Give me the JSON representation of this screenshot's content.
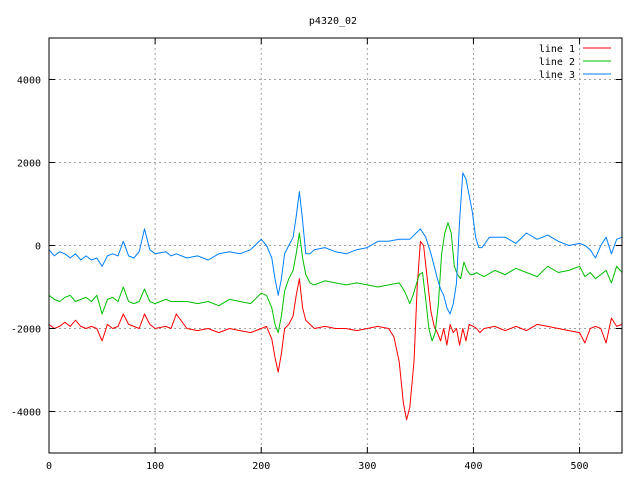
{
  "chart_data": {
    "type": "line",
    "title": "p4320_02",
    "xlabel": "",
    "ylabel": "",
    "xlim": [
      0,
      540
    ],
    "ylim": [
      -5000,
      5000
    ],
    "xticks": [
      0,
      100,
      200,
      300,
      400,
      500
    ],
    "yticks": [
      -4000,
      -2000,
      0,
      2000,
      4000
    ],
    "grid": true,
    "legend_position": "top-right",
    "series": [
      {
        "name": "line 1",
        "color": "#ff0000",
        "x": [
          0,
          5,
          10,
          15,
          20,
          25,
          30,
          35,
          40,
          45,
          50,
          55,
          60,
          65,
          70,
          75,
          80,
          85,
          90,
          95,
          100,
          110,
          115,
          120,
          130,
          140,
          150,
          160,
          170,
          180,
          190,
          200,
          205,
          210,
          213,
          216,
          219,
          222,
          226,
          230,
          233,
          236,
          239,
          242,
          246,
          250,
          260,
          270,
          280,
          290,
          300,
          310,
          320,
          325,
          330,
          334,
          337,
          340,
          344,
          347,
          350,
          353,
          356,
          360,
          363,
          366,
          369,
          372,
          375,
          378,
          381,
          384,
          387,
          390,
          393,
          396,
          400,
          403,
          406,
          410,
          420,
          430,
          440,
          450,
          460,
          470,
          480,
          490,
          500,
          505,
          510,
          515,
          520,
          525,
          530,
          535,
          540
        ],
        "y": [
          -1900,
          -2000,
          -1950,
          -1850,
          -1950,
          -1800,
          -1950,
          -2000,
          -1950,
          -2000,
          -2300,
          -1900,
          -2000,
          -1950,
          -1650,
          -1900,
          -1950,
          -2000,
          -1650,
          -1900,
          -2000,
          -1950,
          -2000,
          -1650,
          -2000,
          -2050,
          -2000,
          -2100,
          -2000,
          -2050,
          -2100,
          -2000,
          -1950,
          -2250,
          -2700,
          -3050,
          -2600,
          -2000,
          -1900,
          -1700,
          -1200,
          -800,
          -1500,
          -1800,
          -1900,
          -2000,
          -1950,
          -2000,
          -2000,
          -2050,
          -2000,
          -1950,
          -2000,
          -2200,
          -2800,
          -3800,
          -4200,
          -3900,
          -2800,
          -1000,
          100,
          0,
          -700,
          -1600,
          -1950,
          -2100,
          -2300,
          -2000,
          -2400,
          -1900,
          -2100,
          -2000,
          -2400,
          -2000,
          -2300,
          -1900,
          -1950,
          -2000,
          -2100,
          -2000,
          -1950,
          -2050,
          -1950,
          -2050,
          -1900,
          -1950,
          -2000,
          -2050,
          -2100,
          -2350,
          -2000,
          -1950,
          -2000,
          -2350,
          -1750,
          -1950,
          -1900
        ]
      },
      {
        "name": "line 2",
        "color": "#00c000",
        "x": [
          0,
          5,
          10,
          15,
          20,
          25,
          30,
          35,
          40,
          45,
          50,
          55,
          60,
          65,
          70,
          75,
          80,
          85,
          90,
          95,
          100,
          110,
          115,
          120,
          130,
          140,
          150,
          160,
          170,
          180,
          190,
          200,
          205,
          210,
          213,
          216,
          219,
          222,
          226,
          230,
          233,
          236,
          239,
          242,
          246,
          250,
          260,
          270,
          280,
          290,
          300,
          310,
          320,
          330,
          335,
          340,
          343,
          346,
          349,
          352,
          355,
          358,
          361,
          364,
          367,
          370,
          373,
          376,
          379,
          382,
          385,
          388,
          391,
          394,
          397,
          400,
          403,
          406,
          410,
          420,
          430,
          440,
          450,
          460,
          470,
          480,
          490,
          500,
          505,
          510,
          515,
          520,
          525,
          530,
          535,
          540
        ],
        "y": [
          -1200,
          -1300,
          -1350,
          -1250,
          -1200,
          -1350,
          -1300,
          -1250,
          -1350,
          -1200,
          -1650,
          -1300,
          -1250,
          -1350,
          -1000,
          -1350,
          -1400,
          -1350,
          -1050,
          -1350,
          -1400,
          -1300,
          -1350,
          -1350,
          -1350,
          -1400,
          -1350,
          -1450,
          -1300,
          -1350,
          -1400,
          -1150,
          -1200,
          -1500,
          -1900,
          -2100,
          -1700,
          -1100,
          -800,
          -600,
          -200,
          300,
          -300,
          -700,
          -900,
          -950,
          -850,
          -900,
          -950,
          -900,
          -950,
          -1000,
          -950,
          -900,
          -1100,
          -1400,
          -1200,
          -950,
          -700,
          -650,
          -1300,
          -2000,
          -2300,
          -2100,
          -1400,
          -200,
          300,
          550,
          300,
          -500,
          -700,
          -800,
          -400,
          -600,
          -700,
          -700,
          -650,
          -700,
          -750,
          -600,
          -700,
          -550,
          -650,
          -750,
          -500,
          -650,
          -600,
          -500,
          -750,
          -650,
          -800,
          -700,
          -600,
          -900,
          -500,
          -650
        ]
      },
      {
        "name": "line 3",
        "color": "#0080ff",
        "x": [
          0,
          5,
          10,
          15,
          20,
          25,
          30,
          35,
          40,
          45,
          50,
          55,
          60,
          65,
          70,
          75,
          80,
          85,
          90,
          95,
          100,
          110,
          115,
          120,
          130,
          140,
          150,
          160,
          170,
          180,
          190,
          200,
          205,
          210,
          213,
          216,
          219,
          222,
          226,
          230,
          233,
          236,
          239,
          242,
          246,
          250,
          260,
          270,
          280,
          290,
          300,
          310,
          320,
          330,
          340,
          350,
          355,
          360,
          363,
          366,
          369,
          372,
          375,
          378,
          381,
          384,
          387,
          390,
          393,
          396,
          399,
          402,
          405,
          408,
          411,
          415,
          420,
          430,
          440,
          450,
          460,
          470,
          480,
          490,
          500,
          505,
          510,
          515,
          520,
          525,
          530,
          535,
          540
        ],
        "y": [
          -100,
          -250,
          -150,
          -200,
          -300,
          -200,
          -350,
          -250,
          -350,
          -300,
          -500,
          -250,
          -200,
          -250,
          100,
          -250,
          -300,
          -150,
          400,
          -100,
          -200,
          -150,
          -250,
          -200,
          -300,
          -250,
          -350,
          -200,
          -150,
          -200,
          -100,
          150,
          0,
          -300,
          -800,
          -1200,
          -800,
          -200,
          0,
          200,
          700,
          1300,
          600,
          -200,
          -200,
          -100,
          -50,
          -150,
          -200,
          -100,
          -50,
          100,
          100,
          150,
          150,
          400,
          200,
          -200,
          -500,
          -800,
          -1050,
          -1200,
          -1500,
          -1650,
          -1400,
          -900,
          600,
          1750,
          1600,
          1200,
          800,
          200,
          -50,
          -50,
          50,
          200,
          200,
          200,
          50,
          300,
          150,
          250,
          100,
          0,
          50,
          0,
          -100,
          -300,
          0,
          200,
          -200,
          150,
          200
        ]
      }
    ]
  }
}
